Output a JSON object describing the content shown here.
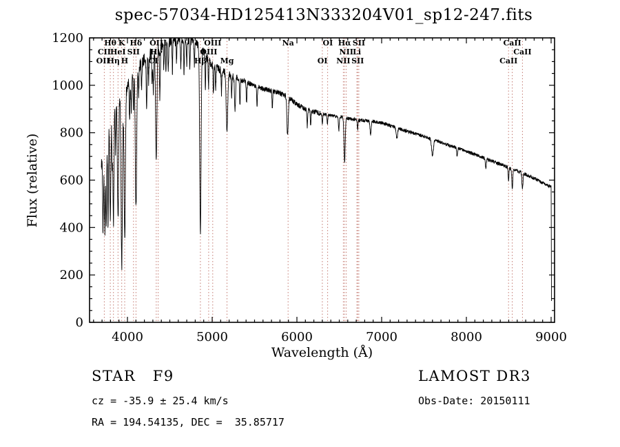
{
  "chart_data": {
    "type": "line",
    "title": "spec-57034-HD125413N333204V01_sp12-247.fits",
    "xlabel": "Wavelength (Å)",
    "ylabel": "Flux (relative)",
    "xlim": [
      3553,
      9041
    ],
    "ylim": [
      0,
      1200
    ],
    "xticks": [
      4000,
      5000,
      6000,
      7000,
      8000,
      9000
    ],
    "yticks": [
      0,
      200,
      400,
      600,
      800,
      1000,
      1200
    ],
    "grid": false,
    "line_color": "#000000",
    "marker_line_color": "#b86055",
    "spectrum": {
      "x_start": 3692,
      "x_end": 9000,
      "x_step": 2,
      "seed": 20150111,
      "continuum": [
        [
          3700,
          680
        ],
        [
          3750,
          780
        ],
        [
          3800,
          860
        ],
        [
          3850,
          915
        ],
        [
          3900,
          950
        ],
        [
          3950,
          968
        ],
        [
          4000,
          1000
        ],
        [
          4100,
          1060
        ],
        [
          4200,
          1110
        ],
        [
          4300,
          1140
        ],
        [
          4400,
          1170
        ],
        [
          4500,
          1185
        ],
        [
          4600,
          1192
        ],
        [
          4700,
          1190
        ],
        [
          4800,
          1182
        ],
        [
          4850,
          1165
        ],
        [
          4900,
          1140
        ],
        [
          4950,
          1110
        ],
        [
          5000,
          1085
        ],
        [
          5100,
          1062
        ],
        [
          5200,
          1048
        ],
        [
          5300,
          1030
        ],
        [
          5400,
          1012
        ],
        [
          5500,
          1000
        ],
        [
          5600,
          985
        ],
        [
          5700,
          976
        ],
        [
          5800,
          968
        ],
        [
          5900,
          950
        ],
        [
          6000,
          920
        ],
        [
          6100,
          898
        ],
        [
          6200,
          888
        ],
        [
          6300,
          880
        ],
        [
          6400,
          872
        ],
        [
          6500,
          868
        ],
        [
          6600,
          860
        ],
        [
          6700,
          855
        ],
        [
          6800,
          851
        ],
        [
          6900,
          847
        ],
        [
          7000,
          842
        ],
        [
          7100,
          830
        ],
        [
          7200,
          818
        ],
        [
          7300,
          806
        ],
        [
          7400,
          795
        ],
        [
          7500,
          785
        ],
        [
          7600,
          772
        ],
        [
          7700,
          760
        ],
        [
          7800,
          746
        ],
        [
          7900,
          734
        ],
        [
          8000,
          722
        ],
        [
          8100,
          708
        ],
        [
          8200,
          695
        ],
        [
          8300,
          681
        ],
        [
          8400,
          667
        ],
        [
          8500,
          653
        ],
        [
          8600,
          639
        ],
        [
          8700,
          624
        ],
        [
          8800,
          608
        ],
        [
          8900,
          588
        ],
        [
          9000,
          572
        ]
      ],
      "absorption_lines": [
        [
          3712,
          320,
          5
        ],
        [
          3727,
          180,
          4
        ],
        [
          3735,
          340,
          4
        ],
        [
          3750,
          380,
          5
        ],
        [
          3771,
          400,
          5
        ],
        [
          3798,
          440,
          6
        ],
        [
          3820,
          240,
          4
        ],
        [
          3835,
          470,
          6
        ],
        [
          3860,
          200,
          4
        ],
        [
          3889,
          520,
          7
        ],
        [
          3933,
          720,
          8
        ],
        [
          3968,
          620,
          8
        ],
        [
          4026,
          180,
          4
        ],
        [
          4045,
          140,
          4
        ],
        [
          4072,
          150,
          4
        ],
        [
          4101,
          580,
          8
        ],
        [
          4132,
          120,
          4
        ],
        [
          4167,
          110,
          4
        ],
        [
          4226,
          220,
          5
        ],
        [
          4250,
          110,
          4
        ],
        [
          4290,
          140,
          4
        ],
        [
          4305,
          170,
          5
        ],
        [
          4340,
          470,
          8
        ],
        [
          4383,
          220,
          5
        ],
        [
          4430,
          110,
          4
        ],
        [
          4455,
          120,
          4
        ],
        [
          4482,
          130,
          4
        ],
        [
          4531,
          130,
          4
        ],
        [
          4580,
          100,
          4
        ],
        [
          4630,
          110,
          4
        ],
        [
          4668,
          140,
          4
        ],
        [
          4700,
          100,
          4
        ],
        [
          4736,
          120,
          4
        ],
        [
          4790,
          100,
          4
        ],
        [
          4861,
          780,
          8
        ],
        [
          4920,
          140,
          4
        ],
        [
          4957,
          110,
          4
        ],
        [
          5015,
          120,
          4
        ],
        [
          5041,
          100,
          4
        ],
        [
          5110,
          90,
          4
        ],
        [
          5175,
          245,
          9
        ],
        [
          5230,
          90,
          4
        ],
        [
          5270,
          140,
          6
        ],
        [
          5328,
          110,
          4
        ],
        [
          5406,
          90,
          4
        ],
        [
          5530,
          80,
          4
        ],
        [
          5710,
          70,
          4
        ],
        [
          5890,
          165,
          8
        ],
        [
          6122,
          70,
          4
        ],
        [
          6162,
          60,
          4
        ],
        [
          6300,
          45,
          4
        ],
        [
          6360,
          40,
          4
        ],
        [
          6495,
          60,
          5
        ],
        [
          6563,
          190,
          7
        ],
        [
          6717,
          40,
          4
        ],
        [
          6870,
          55,
          7
        ],
        [
          7180,
          45,
          8
        ],
        [
          7600,
          70,
          10
        ],
        [
          7890,
          35,
          5
        ],
        [
          8230,
          40,
          6
        ],
        [
          8498,
          55,
          5
        ],
        [
          8542,
          85,
          6
        ],
        [
          8662,
          70,
          6
        ]
      ],
      "noise_segments": [
        [
          4000,
          34
        ],
        [
          4600,
          26
        ],
        [
          5300,
          18
        ],
        [
          6300,
          11
        ],
        [
          99999,
          7
        ]
      ],
      "edge_drop_points": [
        [
          9001,
          520
        ],
        [
          9002,
          420
        ],
        [
          9003,
          300
        ],
        [
          9004,
          180
        ],
        [
          9005,
          90
        ]
      ]
    },
    "marked_lines": [
      3727,
      3798,
      3835,
      3889,
      3933,
      3968,
      4072,
      4101,
      4340,
      4363,
      4861,
      4959,
      5007,
      5175,
      5896,
      6300,
      6363,
      6548,
      6563,
      6583,
      6708,
      6717,
      6731,
      8498,
      8542,
      8662
    ],
    "feature_labels": [
      {
        "text": "Hθ",
        "wl": 3798,
        "row": 0
      },
      {
        "text": "K",
        "wl": 3933,
        "row": 0
      },
      {
        "text": "Hδ",
        "wl": 4101,
        "row": 0
      },
      {
        "text": "OIII",
        "wl": 4363,
        "row": 0
      },
      {
        "text": "OIII",
        "wl": 5007,
        "row": 0
      },
      {
        "text": "Na",
        "wl": 5896,
        "row": 0
      },
      {
        "text": "OI",
        "wl": 6365,
        "row": 0
      },
      {
        "text": "Hα",
        "wl": 6563,
        "row": 0
      },
      {
        "text": "SII",
        "wl": 6731,
        "row": 0
      },
      {
        "text": "CaII",
        "wl": 8542,
        "row": 0
      },
      {
        "text": "CII",
        "wl": 3727,
        "row": 1
      },
      {
        "text": "HeI",
        "wl": 3889,
        "row": 1
      },
      {
        "text": "SII",
        "wl": 4072,
        "row": 1
      },
      {
        "text": "Hγ",
        "wl": 4340,
        "row": 1
      },
      {
        "text": "OIII",
        "wl": 4959,
        "row": 1
      },
      {
        "text": "NII",
        "wl": 6583,
        "row": 1
      },
      {
        "text": "Li",
        "wl": 6708,
        "row": 1
      },
      {
        "text": "CaII",
        "wl": 8662,
        "row": 1
      },
      {
        "text": "OII",
        "wl": 3712,
        "row": 2
      },
      {
        "text": "Hη",
        "wl": 3835,
        "row": 2
      },
      {
        "text": "H",
        "wl": 3968,
        "row": 2
      },
      {
        "text": "CI",
        "wl": 4305,
        "row": 2
      },
      {
        "text": "Hβ",
        "wl": 4861,
        "row": 2
      },
      {
        "text": "Mg",
        "wl": 5175,
        "row": 2
      },
      {
        "text": "OI",
        "wl": 6302,
        "row": 2
      },
      {
        "text": "NII",
        "wl": 6548,
        "row": 2
      },
      {
        "text": "SII",
        "wl": 6717,
        "row": 2
      },
      {
        "text": "CaII",
        "wl": 8498,
        "row": 2
      }
    ]
  },
  "annotations": {
    "class_label": "STAR   F9",
    "survey": "LAMOST DR3",
    "cz": "cz = -35.9 ± 25.4 km/s",
    "obs_date": "Obs-Date: 20150111",
    "ra_dec": "RA = 194.54135, DEC =  35.85717"
  }
}
